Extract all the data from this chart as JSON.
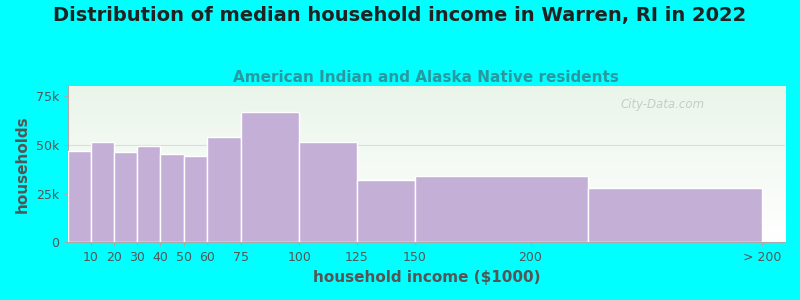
{
  "title": "Distribution of median household income in Warren, RI in 2022",
  "subtitle": "American Indian and Alaska Native residents",
  "xlabel": "household income ($1000)",
  "ylabel": "households",
  "background_outer": "#00FFFF",
  "background_inner_top": "#eaf5ea",
  "background_inner_bottom": "#ffffff",
  "bar_color": "#c4afd6",
  "bar_edge_color": "#ffffff",
  "bar_left_edges": [
    0,
    10,
    20,
    30,
    40,
    50,
    60,
    75,
    100,
    125,
    150,
    225
  ],
  "bar_widths": [
    10,
    10,
    10,
    10,
    10,
    10,
    15,
    25,
    25,
    25,
    75,
    75
  ],
  "values": [
    47000,
    51500,
    46500,
    49500,
    45500,
    44000,
    54000,
    67000,
    51500,
    32000,
    34000,
    28000
  ],
  "xtick_positions": [
    10,
    20,
    30,
    40,
    50,
    60,
    75,
    100,
    125,
    150,
    200,
    300
  ],
  "xtick_labels": [
    "10",
    "20",
    "30",
    "40",
    "50",
    "60",
    "75",
    "100",
    "125",
    "150",
    "200",
    "> 200"
  ],
  "yticks": [
    0,
    25000,
    50000,
    75000
  ],
  "ytick_labels": [
    "0",
    "25k",
    "50k",
    "75k"
  ],
  "xlim": [
    0,
    310
  ],
  "ylim": [
    0,
    80000
  ],
  "title_fontsize": 14,
  "subtitle_fontsize": 11,
  "axis_label_fontsize": 11,
  "tick_fontsize": 9,
  "title_color": "#222222",
  "subtitle_color": "#2899a0",
  "axis_label_color": "#555555",
  "watermark": "City-Data.com"
}
